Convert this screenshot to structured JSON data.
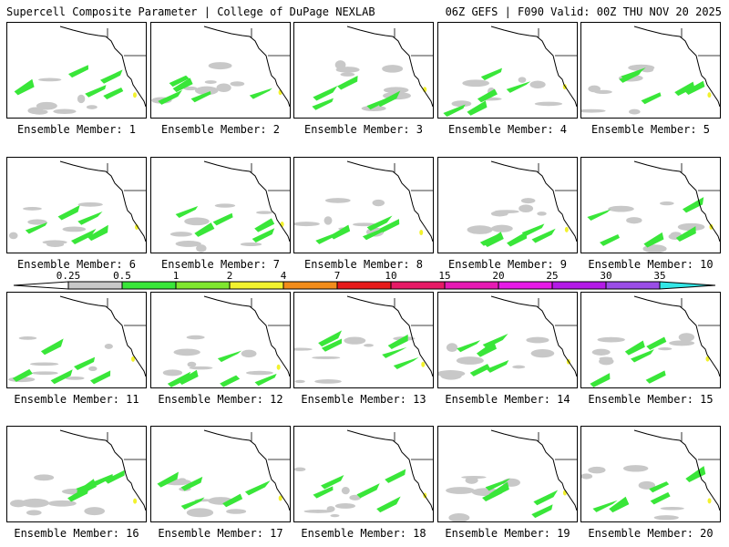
{
  "header": {
    "title_left": "Supercell Composite Parameter | College of DuPage NEXLAB",
    "title_right": "06Z GEFS | F090 Valid: 00Z THU NOV 20 2025"
  },
  "members": [
    {
      "label": "Ensemble Member: 1"
    },
    {
      "label": "Ensemble Member: 2"
    },
    {
      "label": "Ensemble Member: 3"
    },
    {
      "label": "Ensemble Member: 4"
    },
    {
      "label": "Ensemble Member: 5"
    },
    {
      "label": "Ensemble Member: 6"
    },
    {
      "label": "Ensemble Member: 7"
    },
    {
      "label": "Ensemble Member: 8"
    },
    {
      "label": "Ensemble Member: 9"
    },
    {
      "label": "Ensemble Member: 10"
    },
    {
      "label": "Ensemble Member: 11"
    },
    {
      "label": "Ensemble Member: 12"
    },
    {
      "label": "Ensemble Member: 13"
    },
    {
      "label": "Ensemble Member: 14"
    },
    {
      "label": "Ensemble Member: 15"
    },
    {
      "label": "Ensemble Member: 16"
    },
    {
      "label": "Ensemble Member: 17"
    },
    {
      "label": "Ensemble Member: 18"
    },
    {
      "label": "Ensemble Member: 19"
    },
    {
      "label": "Ensemble Member: 20"
    }
  ],
  "legend": {
    "ticks": [
      "0.25",
      "0.5",
      "1",
      "2",
      "4",
      "7",
      "10",
      "15",
      "20",
      "25",
      "30",
      "35"
    ],
    "colors": [
      "#c8c8c8",
      "#39e639",
      "#7fe62e",
      "#f2f22e",
      "#f28c1a",
      "#e61a1a",
      "#e61a66",
      "#e61ab3",
      "#e61ae6",
      "#b31ae6",
      "#9a4de6",
      "#33e6e6"
    ]
  }
}
